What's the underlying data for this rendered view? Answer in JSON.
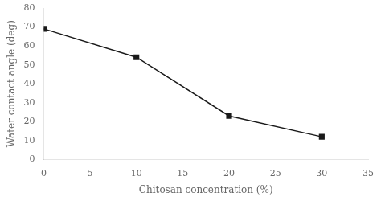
{
  "chart_data": {
    "type": "line",
    "x": [
      0,
      10,
      20,
      30
    ],
    "values": [
      69,
      54,
      23,
      12
    ],
    "xlabel": "Chitosan concentration (%)",
    "ylabel": "Water contact angle (deg)",
    "xlim": [
      0,
      35
    ],
    "ylim": [
      0,
      80
    ],
    "xticks": [
      0,
      5,
      10,
      15,
      20,
      25,
      30,
      35
    ],
    "yticks": [
      0,
      10,
      20,
      30,
      40,
      50,
      60,
      70,
      80
    ],
    "color": "#1a1a1a",
    "marker": "square",
    "grid": false
  }
}
